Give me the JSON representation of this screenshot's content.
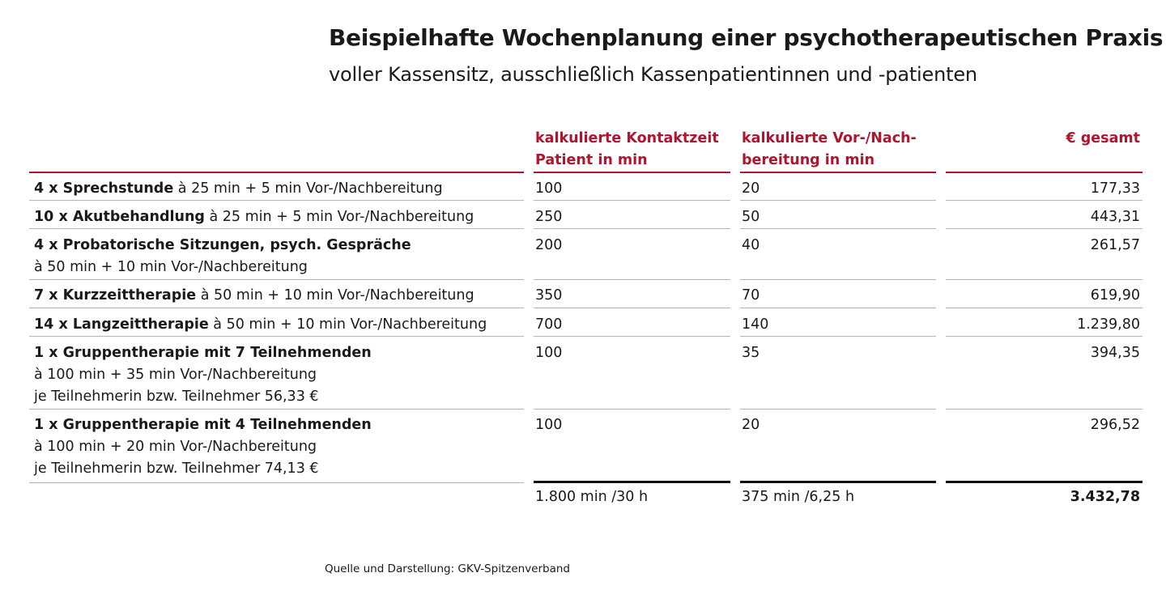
{
  "title": "Beispielhafte Wochenplanung einer psychotherapeutischen Praxis",
  "subtitle": "voller Kassensitz, ausschließlich Kassenpatientinnen und -patienten",
  "headers": {
    "contact_line1": "kalkulierte Kontaktzeit",
    "contact_line2": "Patient in min",
    "prep_line1": "kalkulierte Vor-/Nach-",
    "prep_line2": "bereitung in min",
    "total": "€ gesamt"
  },
  "rows": [
    {
      "bold": "4 x Sprechstunde",
      "rest": " à 25 min + 5 min Vor-/Nachbereitung",
      "line2": "",
      "line3": "",
      "contact": "100",
      "prep": "20",
      "total": "177,33"
    },
    {
      "bold": "10 x Akutbehandlung",
      "rest": " à 25 min + 5 min Vor-/Nachbereitung",
      "line2": "",
      "line3": "",
      "contact": "250",
      "prep": "50",
      "total": "443,31"
    },
    {
      "bold": "4 x Probatorische Sitzungen, psych. Gespräche",
      "rest": "",
      "line2": "à 50 min + 10 min Vor-/Nachbereitung",
      "line3": "",
      "contact": "200",
      "prep": "40",
      "total": "261,57"
    },
    {
      "bold": "7 x Kurzzeittherapie",
      "rest": " à 50 min + 10 min Vor-/Nachbereitung",
      "line2": "",
      "line3": "",
      "contact": "350",
      "prep": "70",
      "total": "619,90"
    },
    {
      "bold": "14 x Langzeittherapie",
      "rest": " à 50 min + 10 min Vor-/Nachbereitung",
      "line2": "",
      "line3": "",
      "contact": "700",
      "prep": "140",
      "total": "1.239,80"
    },
    {
      "bold": "1 x Gruppentherapie mit 7 Teilnehmenden",
      "rest": "",
      "line2": "à 100 min + 35 min Vor-/Nachbereitung",
      "line3": "je Teilnehmerin bzw. Teilnehmer 56,33 €",
      "contact": "100",
      "prep": "35",
      "total": "394,35"
    },
    {
      "bold": "1 x Gruppentherapie mit 4 Teilnehmenden",
      "rest": "",
      "line2": "à 100 min + 20 min Vor-/Nachbereitung",
      "line3": "je Teilnehmerin bzw. Teilnehmer 74,13 €",
      "contact": "100",
      "prep": "20",
      "total": "296,52"
    }
  ],
  "totals": {
    "contact": "1.800 min /30 h",
    "prep": "375 min /6,25 h",
    "total": "3.432,78"
  },
  "source": "Quelle und Darstellung: GKV-Spitzenverband",
  "colors": {
    "accent": "#b0152f",
    "rule": "#b5b5b5",
    "text": "#1a1a1a"
  }
}
